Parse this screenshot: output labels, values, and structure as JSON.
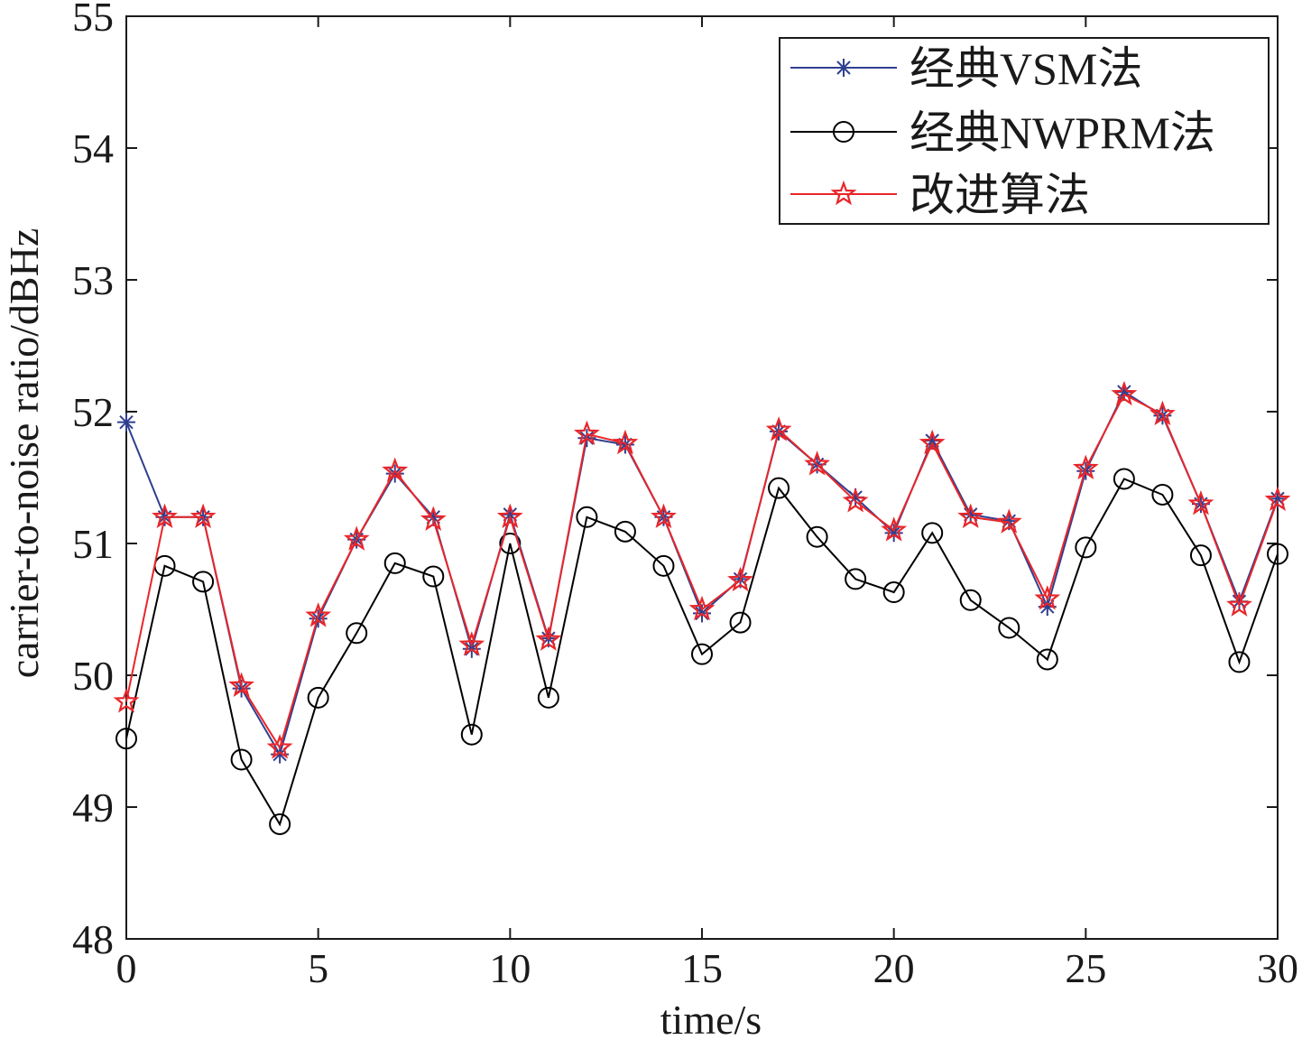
{
  "chart_data": {
    "type": "line",
    "title": "",
    "xlabel": "time/s",
    "ylabel": "carrier-to-noise ratio/dBHz",
    "xlim": [
      0,
      30
    ],
    "ylim": [
      48,
      55
    ],
    "xticks": [
      0,
      5,
      10,
      15,
      20,
      25,
      30
    ],
    "yticks": [
      48,
      49,
      50,
      51,
      52,
      53,
      54,
      55
    ],
    "grid": false,
    "legend_position": "top-right",
    "x": [
      0,
      1,
      2,
      3,
      4,
      5,
      6,
      7,
      8,
      9,
      10,
      11,
      12,
      13,
      14,
      15,
      16,
      17,
      18,
      19,
      20,
      21,
      22,
      23,
      24,
      25,
      26,
      27,
      28,
      29,
      30
    ],
    "series": [
      {
        "name": "经典VSM法",
        "color": "#2f3f8f",
        "marker": "asterisk",
        "values": [
          51.92,
          51.2,
          51.2,
          49.9,
          49.4,
          50.43,
          51.03,
          51.53,
          51.2,
          50.2,
          51.22,
          50.28,
          51.8,
          51.75,
          51.2,
          50.47,
          50.73,
          51.85,
          51.6,
          51.35,
          51.08,
          51.78,
          51.22,
          51.17,
          50.52,
          51.55,
          52.15,
          51.97,
          51.3,
          50.56,
          51.34
        ]
      },
      {
        "name": "经典NWPRM法",
        "color": "#000000",
        "marker": "circle",
        "values": [
          49.52,
          50.83,
          50.71,
          49.36,
          48.87,
          49.83,
          50.32,
          50.85,
          50.75,
          49.55,
          51.0,
          49.83,
          51.2,
          51.09,
          50.83,
          50.16,
          50.4,
          51.42,
          51.05,
          50.73,
          50.63,
          51.08,
          50.57,
          50.36,
          50.12,
          50.97,
          51.49,
          51.37,
          50.91,
          50.1,
          50.92
        ]
      },
      {
        "name": "改进算法",
        "color": "#e8262a",
        "marker": "star",
        "values": [
          49.8,
          51.2,
          51.2,
          49.92,
          49.45,
          50.45,
          51.03,
          51.55,
          51.18,
          50.23,
          51.2,
          50.27,
          51.83,
          51.76,
          51.2,
          50.5,
          50.72,
          51.86,
          51.6,
          51.32,
          51.1,
          51.76,
          51.2,
          51.16,
          50.58,
          51.57,
          52.13,
          51.98,
          51.3,
          50.53,
          51.33
        ]
      }
    ]
  }
}
